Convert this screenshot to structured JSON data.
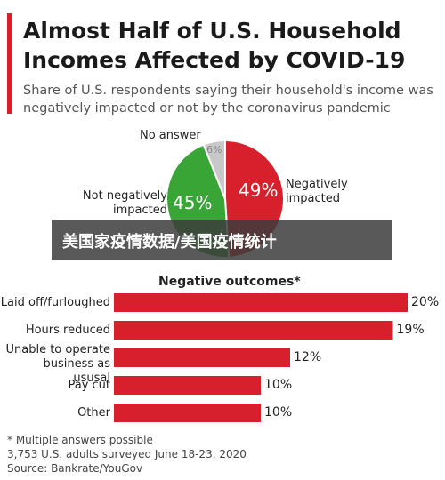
{
  "header": {
    "title": "Almost Half of U.S. Household Incomes Affected by COVID-19",
    "subtitle": "Share of U.S. respondents saying their household's income was negatively impacted or not by the coronavirus pandemic"
  },
  "chart_data": [
    {
      "type": "pie",
      "categories": [
        "Negatively impacted",
        "Not negatively impacted",
        "No answer"
      ],
      "values": [
        49,
        45,
        6
      ],
      "value_labels": [
        "49%",
        "45%",
        "6%"
      ],
      "colors": [
        "#d7202b",
        "#3aa537",
        "#c8c8c8"
      ]
    },
    {
      "type": "bar",
      "title": "Negative outcomes*",
      "categories": [
        "Laid off/furloughed",
        "Hours reduced",
        "Unable to operate business as ususal",
        "Pay cut",
        "Other"
      ],
      "values": [
        20,
        19,
        12,
        10,
        10
      ],
      "value_labels": [
        "20%",
        "19%",
        "12%",
        "10%",
        "10%"
      ],
      "color": "#d7202b"
    }
  ],
  "footer": {
    "notes": [
      "* Multiple answers possible",
      "3,753 U.S. adults surveyed June 18-23, 2020",
      "Source: Bankrate/YouGov"
    ]
  },
  "overlay": {
    "text": "美国家疫情数据/美国疫情统计"
  }
}
